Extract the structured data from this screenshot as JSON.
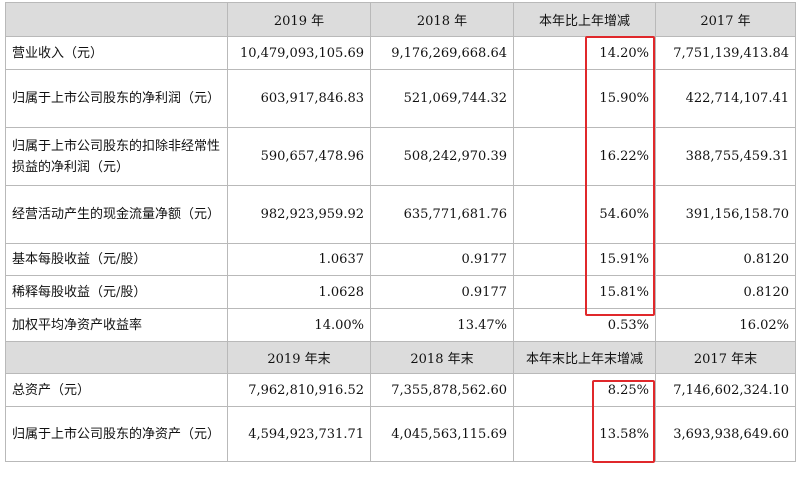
{
  "header1": [
    "",
    "2019 年",
    "2018 年",
    "本年比上年增减",
    "2017 年"
  ],
  "section1": [
    {
      "label": "营业收入（元）",
      "v2019": "10,479,093,105.69",
      "v2018": "9,176,269,668.64",
      "change": "14.20%",
      "v2017": "7,751,139,413.84"
    },
    {
      "label": "归属于上市公司股东的净利润（元）",
      "v2019": "603,917,846.83",
      "v2018": "521,069,744.32",
      "change": "15.90%",
      "v2017": "422,714,107.41"
    },
    {
      "label": "归属于上市公司股东的扣除非经常性损益的净利润（元）",
      "v2019": "590,657,478.96",
      "v2018": "508,242,970.39",
      "change": "16.22%",
      "v2017": "388,755,459.31"
    },
    {
      "label": "经营活动产生的现金流量净额（元）",
      "v2019": "982,923,959.92",
      "v2018": "635,771,681.76",
      "change": "54.60%",
      "v2017": "391,156,158.70"
    },
    {
      "label": "基本每股收益（元/股）",
      "v2019": "1.0637",
      "v2018": "0.9177",
      "change": "15.91%",
      "v2017": "0.8120"
    },
    {
      "label": "稀释每股收益（元/股）",
      "v2019": "1.0628",
      "v2018": "0.9177",
      "change": "15.81%",
      "v2017": "0.8120"
    },
    {
      "label": "加权平均净资产收益率",
      "v2019": "14.00%",
      "v2018": "13.47%",
      "change": "0.53%",
      "v2017": "16.02%"
    }
  ],
  "header2": [
    "",
    "2019 年末",
    "2018 年末",
    "本年末比上年末增减",
    "2017 年末"
  ],
  "section2": [
    {
      "label": "总资产（元）",
      "v2019": "7,962,810,916.52",
      "v2018": "7,355,878,562.60",
      "change": "8.25%",
      "v2017": "7,146,602,324.10"
    },
    {
      "label": "归属于上市公司股东的净资产（元）",
      "v2019": "4,594,923,731.71",
      "v2018": "4,045,563,115.69",
      "change": "13.58%",
      "v2017": "3,693,938,649.60"
    }
  ],
  "highlight_color": "#e0282b"
}
